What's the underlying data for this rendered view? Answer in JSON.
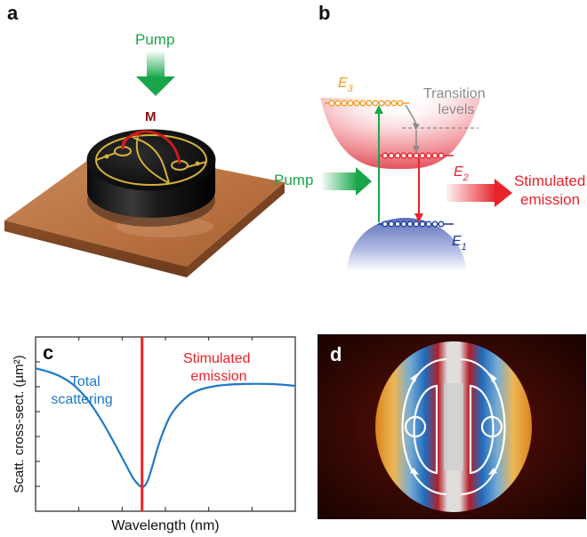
{
  "panels": {
    "a": {
      "letter": "a",
      "pump_label": "Pump",
      "marker_label": "M"
    },
    "b": {
      "letter": "b",
      "pump_label": "Pump",
      "transition_label_line1": "Transition",
      "transition_label_line2": "levels",
      "e3": {
        "main": "E",
        "sub": "3"
      },
      "e2": {
        "main": "E",
        "sub": "2"
      },
      "e1": {
        "main": "E",
        "sub": "1"
      },
      "stimulated_line1": "Stimulated",
      "stimulated_line2": "emission"
    },
    "c": {
      "letter": "c",
      "ylabel": "Scatt. cross-sect. (µm²)",
      "xlabel": "Wavelength (nm)",
      "curve_label_line1": "Total",
      "curve_label_line2": "scattering",
      "emission_label_line1": "Stimulated",
      "emission_label_line2": "emission"
    },
    "d": {
      "letter": "d"
    }
  },
  "colors": {
    "pump_green": "#19a64a",
    "emission_red": "#e8232a",
    "level_orange": "#f39a1e",
    "level_blue": "#1f3c99",
    "curve_blue": "#1f78c8",
    "copper": "#b5703f",
    "gray": "#8a8a8a"
  },
  "chart_data": {
    "type": "line",
    "title": "",
    "xlabel": "Wavelength (nm)",
    "ylabel": "Scatt. cross-sect. (µm²)",
    "series": [
      {
        "name": "Total scattering",
        "x": [
          0,
          0.05,
          0.1,
          0.15,
          0.2,
          0.25,
          0.3,
          0.35,
          0.38,
          0.41,
          0.43,
          0.45,
          0.48,
          0.52,
          0.57,
          0.62,
          0.7,
          0.8,
          0.9,
          1.0
        ],
        "y": [
          0.82,
          0.8,
          0.77,
          0.72,
          0.64,
          0.53,
          0.4,
          0.26,
          0.18,
          0.14,
          0.17,
          0.26,
          0.41,
          0.55,
          0.64,
          0.69,
          0.72,
          0.73,
          0.73,
          0.72
        ]
      }
    ],
    "vertical_line": {
      "name": "Stimulated emission",
      "x": 0.41
    },
    "xlim": [
      0,
      1
    ],
    "ylim": [
      0,
      1
    ],
    "grid": false,
    "legend": "none"
  }
}
